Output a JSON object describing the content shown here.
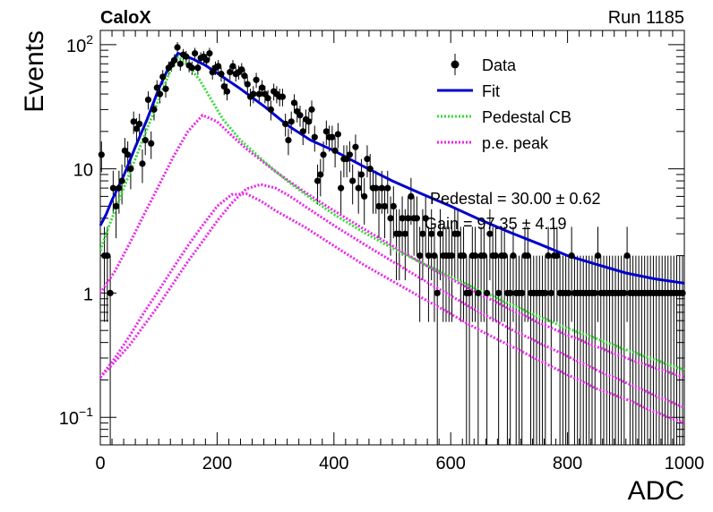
{
  "header": {
    "left_label": "CaloX",
    "right_label": "Run 1185"
  },
  "chart_data": {
    "type": "scatter",
    "xlabel": "ADC",
    "ylabel": "Events",
    "x_range": [
      0,
      1000
    ],
    "y_range": [
      0.06,
      130
    ],
    "y_scale": "log",
    "x_ticks": [
      "0",
      "200",
      "400",
      "600",
      "800",
      "1000"
    ],
    "y_ticks": [
      {
        "value": 0.1,
        "base": "10",
        "exp": "−1"
      },
      {
        "value": 1,
        "text": "1"
      },
      {
        "value": 10,
        "text": "10"
      },
      {
        "value": 100,
        "base": "10",
        "exp": "2"
      }
    ],
    "legend_position": "top-right",
    "legend": [
      {
        "label": "Data",
        "style": "marker",
        "color": "#000000"
      },
      {
        "label": "Fit",
        "style": "solid",
        "color": "#0000cc"
      },
      {
        "label": "Pedestal CB",
        "style": "dotted",
        "color": "#33dd33"
      },
      {
        "label": "p.e. peak",
        "style": "dotted",
        "color": "#ee22ee"
      }
    ],
    "fit_results": [
      "Pedestal = 30.00 ± 0.62",
      "Gain = 97.35 ± 4.19"
    ],
    "data": {
      "bin_width": 5,
      "x": [
        2,
        7,
        12,
        17,
        22,
        27,
        32,
        37,
        42,
        47,
        52,
        57,
        62,
        67,
        72,
        77,
        82,
        87,
        92,
        97,
        102,
        107,
        112,
        117,
        122,
        127,
        132,
        137,
        142,
        147,
        152,
        157,
        162,
        167,
        172,
        177,
        182,
        187,
        192,
        197,
        202,
        207,
        212,
        217,
        222,
        227,
        232,
        237,
        242,
        247,
        252,
        257,
        262,
        267,
        272,
        277,
        282,
        287,
        292,
        297,
        302,
        307,
        312,
        317,
        322,
        327,
        332,
        337,
        342,
        347,
        352,
        357,
        362,
        367,
        372,
        377,
        382,
        387,
        392,
        397,
        402,
        407,
        412,
        417,
        422,
        427,
        432,
        437,
        442,
        447,
        452,
        457,
        462,
        467,
        472,
        477,
        482,
        487,
        492,
        497,
        502,
        507,
        512,
        517,
        522,
        527,
        532,
        537,
        542,
        547,
        552,
        557,
        562,
        567,
        572,
        577,
        582,
        587,
        592,
        597,
        602,
        607,
        612,
        617,
        622,
        627,
        632,
        637,
        642,
        647,
        652,
        657,
        662,
        667,
        672,
        677,
        682,
        687,
        692,
        697,
        702,
        707,
        712,
        717,
        722,
        727,
        732,
        737,
        742,
        747,
        752,
        757,
        762,
        767,
        772,
        777,
        782,
        787,
        792,
        797,
        802,
        807,
        812,
        817,
        822,
        827,
        832,
        837,
        842,
        847,
        852,
        857,
        862,
        867,
        872,
        877,
        882,
        887,
        892,
        897,
        902,
        907,
        912,
        917,
        922,
        927,
        932,
        937,
        942,
        947,
        952,
        957,
        962,
        967,
        972,
        977,
        982,
        987,
        992,
        997
      ],
      "y": [
        13,
        2,
        2,
        1,
        7,
        5,
        7,
        8,
        14,
        13,
        10,
        24,
        21,
        23,
        11,
        17,
        36,
        16,
        30,
        45,
        40,
        55,
        44,
        65,
        69,
        75,
        95,
        70,
        83,
        80,
        68,
        65,
        85,
        65,
        78,
        80,
        75,
        85,
        60,
        65,
        67,
        58,
        46,
        42,
        60,
        67,
        58,
        60,
        63,
        56,
        48,
        38,
        40,
        52,
        40,
        45,
        40,
        37,
        30,
        42,
        40,
        38,
        38,
        23,
        17,
        24,
        34,
        29,
        27,
        20,
        25,
        24,
        30,
        18,
        8,
        9,
        13,
        20,
        18,
        18,
        14,
        19,
        7,
        12,
        12,
        13,
        8,
        15,
        7,
        9,
        6,
        12,
        10,
        7,
        7,
        5,
        7,
        5,
        7,
        4,
        5,
        3,
        3,
        4,
        3,
        4,
        6,
        4,
        4,
        2,
        3,
        4,
        2,
        3,
        2,
        1,
        3,
        2,
        2,
        2,
        2,
        3,
        3,
        2,
        2,
        1,
        1,
        2,
        2,
        1,
        2,
        2,
        1,
        3,
        2,
        2,
        1,
        2,
        2,
        1,
        1,
        2,
        1,
        1,
        1,
        2,
        2,
        1,
        1,
        1,
        1,
        1,
        1,
        2,
        1,
        2,
        2,
        1,
        1,
        1,
        1,
        2,
        1,
        1,
        1,
        1,
        1,
        1,
        1,
        1,
        2,
        1,
        1,
        1,
        1,
        1,
        1,
        1,
        1,
        1,
        2,
        1,
        1,
        1,
        1,
        1,
        1,
        1,
        1,
        1,
        1,
        1,
        1,
        1,
        1,
        1,
        1,
        1,
        1,
        1
      ]
    },
    "fit_curve": {
      "x": [
        0,
        10,
        20,
        40,
        60,
        80,
        100,
        120,
        133,
        140,
        160,
        180,
        200,
        240,
        280,
        320,
        360,
        400,
        450,
        500,
        550,
        600,
        650,
        700,
        750,
        800,
        850,
        900,
        950,
        1000
      ],
      "y": [
        3.5,
        4.3,
        5.6,
        8.8,
        15,
        25,
        44,
        70,
        85,
        83,
        76,
        68,
        59,
        44,
        32,
        22.5,
        17,
        14,
        10.5,
        8,
        6.3,
        5,
        3.9,
        3.1,
        2.5,
        2.0,
        1.7,
        1.45,
        1.3,
        1.2
      ]
    },
    "pedestal_cb": {
      "x": [
        0,
        10,
        20,
        40,
        60,
        80,
        100,
        120,
        133,
        150,
        170,
        190,
        210,
        240,
        280,
        320,
        360,
        400,
        450,
        500,
        550,
        600,
        650,
        700,
        750,
        800,
        850,
        900,
        950,
        1000
      ],
      "y": [
        2.2,
        3,
        4,
        7,
        12,
        21,
        36,
        62,
        80,
        68,
        52,
        36,
        25,
        17,
        11.5,
        8,
        5.8,
        4.3,
        3.1,
        2.3,
        1.75,
        1.35,
        1.05,
        0.82,
        0.65,
        0.52,
        0.43,
        0.35,
        0.29,
        0.24
      ]
    },
    "pe_peak_1": {
      "x": [
        0,
        25,
        50,
        75,
        100,
        125,
        150,
        175,
        200,
        225,
        250,
        300,
        350,
        400,
        450,
        500,
        550,
        600,
        650,
        700,
        750,
        800,
        850,
        900,
        950,
        1000
      ],
      "y": [
        1,
        1.5,
        2.5,
        4.3,
        7.3,
        12.5,
        20,
        27,
        24,
        18.5,
        14.5,
        9.5,
        6.5,
        4.6,
        3.3,
        2.4,
        1.75,
        1.3,
        0.98,
        0.75,
        0.58,
        0.46,
        0.37,
        0.3,
        0.25,
        0.21
      ]
    },
    "pe_peak_2": {
      "x": [
        0,
        25,
        50,
        75,
        100,
        125,
        150,
        175,
        200,
        225,
        250,
        275,
        300,
        350,
        400,
        450,
        500,
        550,
        600,
        650,
        700,
        750,
        800,
        850,
        900,
        950,
        1000
      ],
      "y": [
        0.21,
        0.3,
        0.45,
        0.7,
        1.05,
        1.6,
        2.4,
        3.5,
        5,
        6.2,
        6.3,
        5.5,
        4.6,
        3.4,
        2.4,
        1.7,
        1.25,
        0.92,
        0.68,
        0.5,
        0.38,
        0.29,
        0.22,
        0.17,
        0.14,
        0.11,
        0.09
      ]
    },
    "pe_peak_3": {
      "x": [
        0,
        25,
        50,
        75,
        100,
        125,
        150,
        175,
        200,
        225,
        250,
        275,
        300,
        325,
        350,
        400,
        450,
        500,
        550,
        600,
        650,
        700,
        750,
        800,
        850,
        900,
        950,
        1000
      ],
      "y": [
        0.21,
        0.28,
        0.38,
        0.55,
        0.8,
        1.2,
        1.8,
        2.6,
        3.8,
        5.3,
        6.9,
        7.5,
        7,
        6,
        5,
        3.5,
        2.5,
        1.8,
        1.3,
        0.95,
        0.7,
        0.52,
        0.4,
        0.31,
        0.24,
        0.19,
        0.15,
        0.12
      ]
    }
  }
}
